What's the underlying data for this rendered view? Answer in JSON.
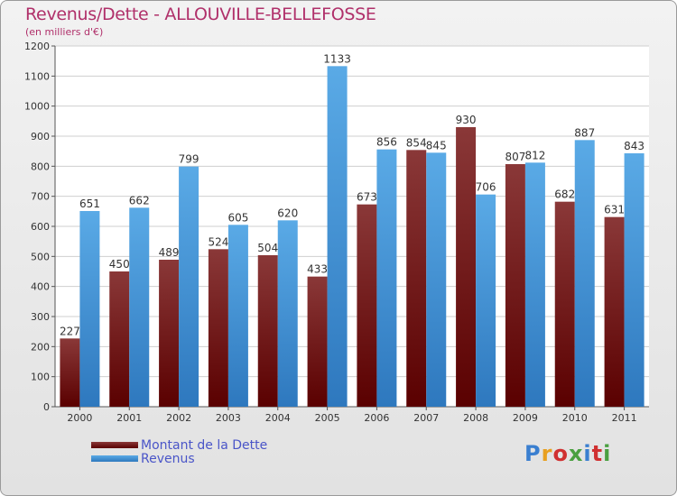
{
  "title": "Revenus/Dette - ALLOUVILLE-BELLEFOSSE",
  "subtitle": "(en milliers d'€)",
  "logo": {
    "text": "Proxiti",
    "colors": [
      "#3a7fd0",
      "#e8a020",
      "#d03030",
      "#4aa040",
      "#3a7fd0",
      "#d03030",
      "#4aa040"
    ]
  },
  "colors": {
    "dette_top": "#8a3838",
    "dette_bottom": "#5a0000",
    "revenus_top": "#5aaae6",
    "revenus_bottom": "#2e78be"
  },
  "chart_data": {
    "type": "bar",
    "title": "Revenus/Dette - ALLOUVILLE-BELLEFOSSE",
    "subtitle": "(en milliers d'€)",
    "categories": [
      "2000",
      "2001",
      "2002",
      "2003",
      "2004",
      "2005",
      "2006",
      "2007",
      "2008",
      "2009",
      "2010",
      "2011"
    ],
    "series": [
      {
        "name": "Montant de la Dette",
        "values": [
          227,
          450,
          489,
          524,
          504,
          433,
          673,
          854,
          930,
          807,
          682,
          631
        ]
      },
      {
        "name": "Revenus",
        "values": [
          651,
          662,
          799,
          605,
          620,
          1133,
          856,
          845,
          706,
          812,
          887,
          843
        ]
      }
    ],
    "ylim": [
      0,
      1200
    ],
    "yticks": [
      0,
      100,
      200,
      300,
      400,
      500,
      600,
      700,
      800,
      900,
      1000,
      1100,
      1200
    ],
    "grid": true,
    "legend_position": "bottom-left"
  }
}
